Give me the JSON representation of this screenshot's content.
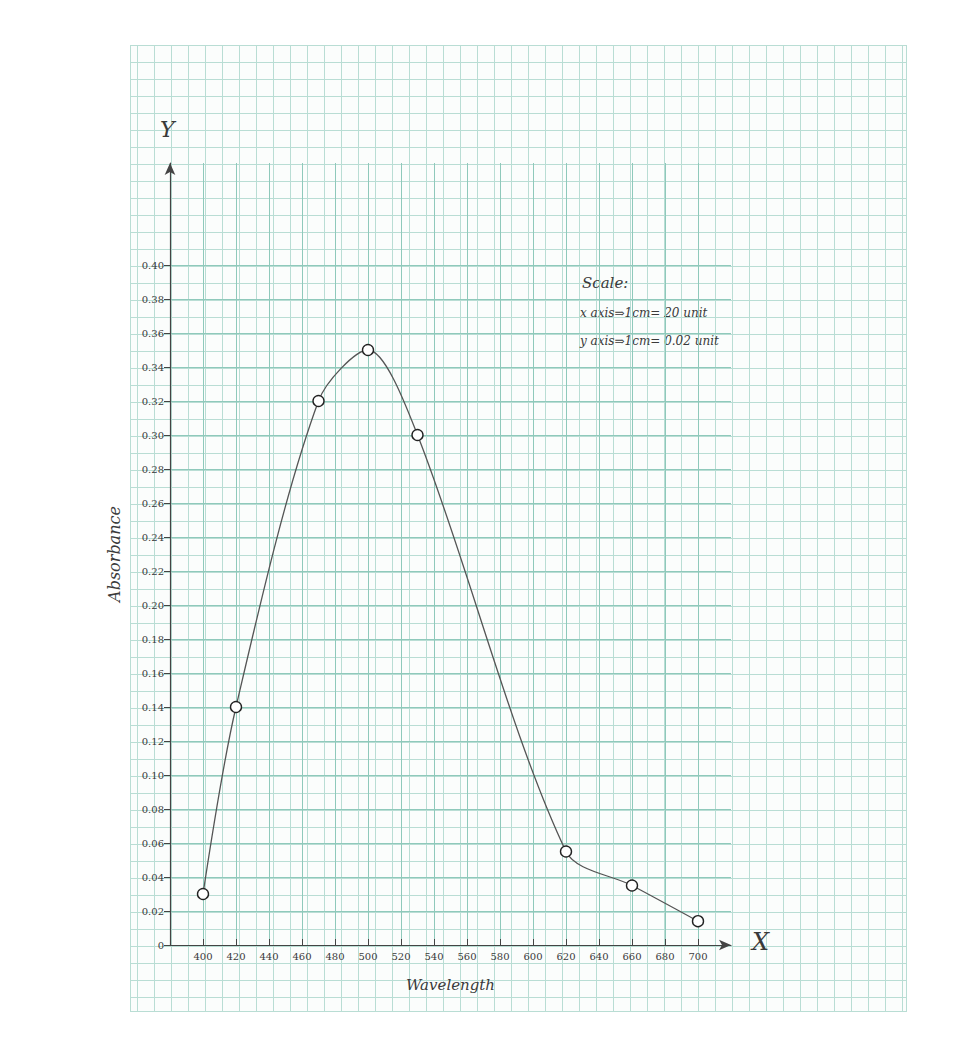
{
  "chart_data": {
    "type": "line",
    "x_label": "Wavelength",
    "y_label": "Absorbance",
    "x": [
      400,
      420,
      470,
      500,
      530,
      620,
      660,
      700
    ],
    "series": [
      {
        "color": "#555555",
        "marker": "circle",
        "line_style": "solid",
        "values": [
          0.03,
          0.14,
          0.32,
          0.35,
          0.3,
          0.055,
          0.035,
          0.014
        ]
      }
    ],
    "xlim": [
      380,
      720
    ],
    "xticks": [
      400,
      420,
      440,
      460,
      480,
      500,
      520,
      540,
      560,
      580,
      600,
      620,
      640,
      660,
      680,
      700
    ],
    "ylim": [
      0,
      0.46
    ],
    "yticks": [
      0,
      0.02,
      0.04,
      0.06,
      0.08,
      {
        "value": 0.1,
        "label": "0.10"
      },
      0.12,
      0.14,
      0.16,
      0.18,
      {
        "value": 0.2,
        "label": "0.20"
      },
      0.22,
      0.24,
      0.26,
      0.28,
      {
        "value": 0.3,
        "label": "0.30"
      },
      0.32,
      0.34,
      0.36,
      0.38,
      {
        "value": 0.4,
        "label": "0.40"
      }
    ],
    "grid": true,
    "annotations": [
      "Y",
      "X",
      "Scale:",
      "x axis⇒1cm= 20 unit",
      "y axis⇒1cm= 0.02 unit"
    ]
  }
}
